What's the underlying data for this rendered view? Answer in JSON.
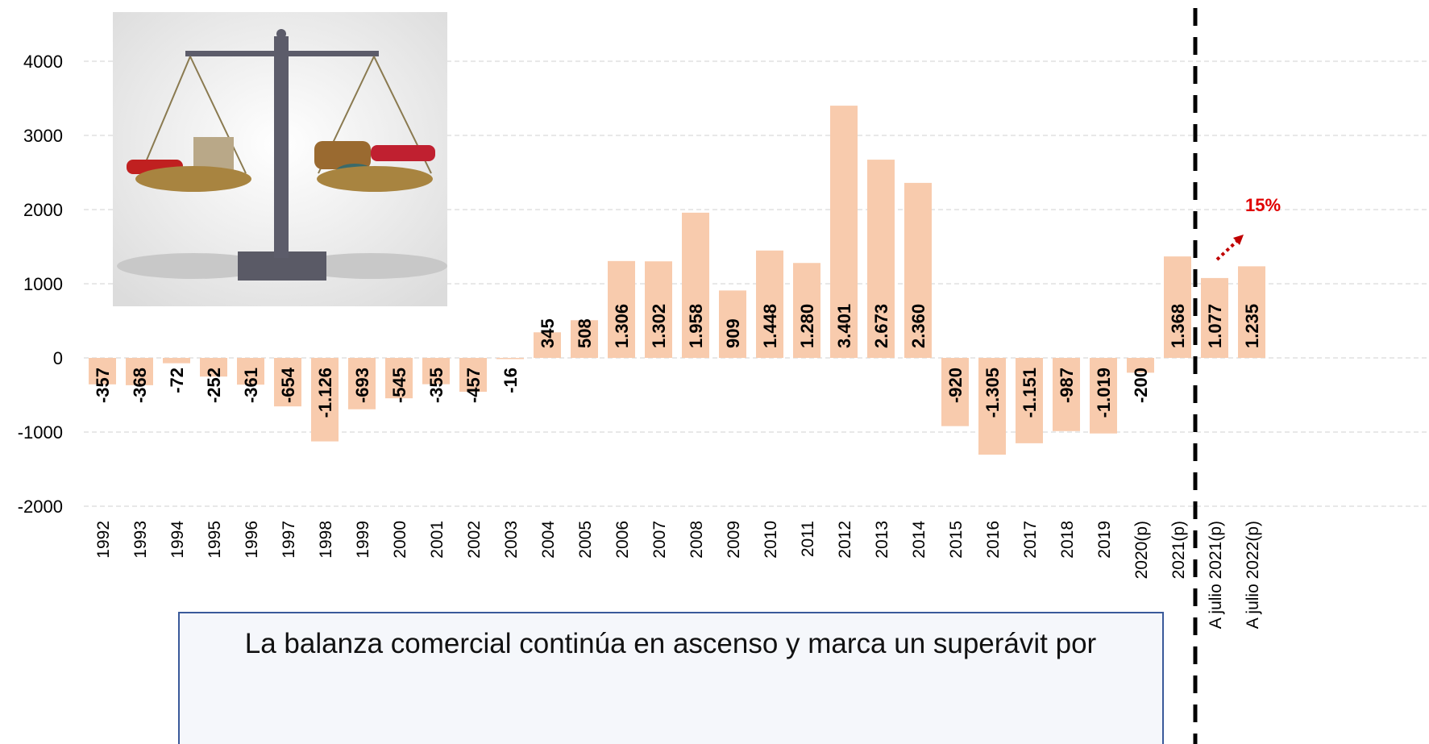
{
  "chart_data": {
    "type": "bar",
    "categories": [
      "1992",
      "1993",
      "1994",
      "1995",
      "1996",
      "1997",
      "1998",
      "1999",
      "2000",
      "2001",
      "2002",
      "2003",
      "2004",
      "2005",
      "2006",
      "2007",
      "2008",
      "2009",
      "2010",
      "2011",
      "2012",
      "2013",
      "2014",
      "2015",
      "2016",
      "2017",
      "2018",
      "2019",
      "2020(p)",
      "2021(p)",
      "A julio 2021(p)",
      "A julio 2022(p)"
    ],
    "values": [
      -357,
      -368,
      -72,
      -252,
      -361,
      -654,
      -1126,
      -693,
      -545,
      -355,
      -457,
      -16,
      345,
      508,
      1306,
      1302,
      1958,
      909,
      1448,
      1280,
      3401,
      2673,
      2360,
      -920,
      -1305,
      -1151,
      -987,
      -1019,
      -200,
      1368,
      1077,
      1235
    ],
    "value_labels": [
      "-357",
      "-368",
      "-72",
      "-252",
      "-361",
      "-654",
      "-1.126",
      "-693",
      "-545",
      "-355",
      "-457",
      "-16",
      "345",
      "508",
      "1.306",
      "1.302",
      "1.958",
      "909",
      "1.448",
      "1.280",
      "3.401",
      "2.673",
      "2.360",
      "-920",
      "-1.305",
      "-1.151",
      "-987",
      "-1.019",
      "-200",
      "1.368",
      "1.077",
      "1.235"
    ],
    "color": "#f8cbad",
    "ylim": [
      -2000,
      4800
    ],
    "yticks": [
      -2000,
      -1000,
      0,
      1000,
      2000,
      3000,
      4000
    ],
    "grid": true,
    "annotation": "15%",
    "note": "La balanza comercial continúa en ascenso y marca un superávit por"
  }
}
